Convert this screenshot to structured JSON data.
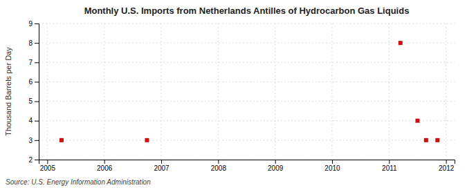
{
  "chart_data": {
    "type": "scatter",
    "title": "Monthly U.S. Imports from Netherlands Antilles of Hydrocarbon Gas Liquids",
    "ylabel": "Thousand Barrels per Day",
    "annotations": [
      "Source: U.S. Energy Information Administration"
    ],
    "x": [
      2005.25,
      2006.75,
      2011.2,
      2011.5,
      2011.65,
      2011.85
    ],
    "values": [
      3,
      3,
      8,
      4,
      3,
      3
    ],
    "color": "#cc1111",
    "marker": "square",
    "xlim": [
      2004.85,
      2012.15
    ],
    "ylim": [
      2,
      9
    ],
    "xticks": [
      2005,
      2006,
      2007,
      2008,
      2009,
      2010,
      2011,
      2012
    ],
    "yticks": [
      2,
      3,
      4,
      5,
      6,
      7,
      8,
      9
    ],
    "grid": true
  }
}
